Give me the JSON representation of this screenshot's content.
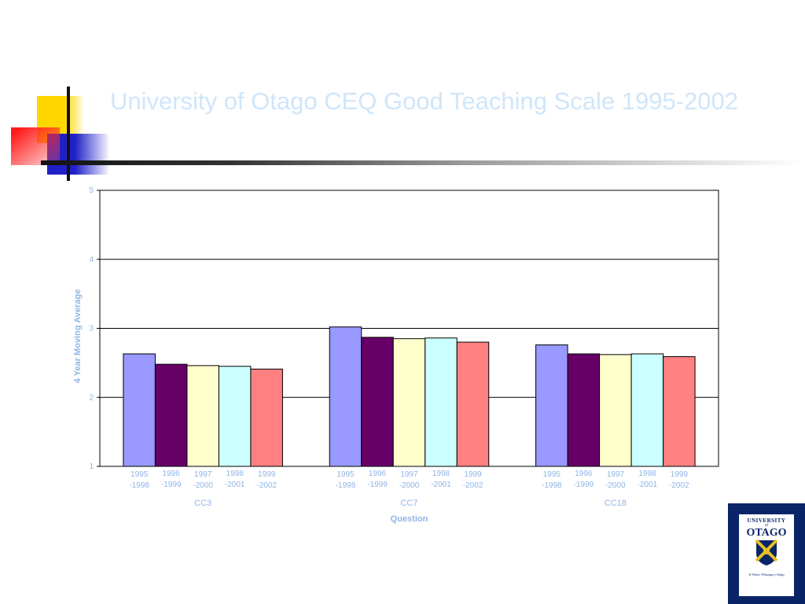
{
  "slide": {
    "title": "University of Otago CEQ Good Teaching Scale 1995-2002",
    "logo": {
      "top_text": "UNIVERSITY",
      "of_text": "of",
      "name": "OTAGO",
      "motto": "Te Whare Wānanga o Otāgo",
      "icon": "university-crest-icon"
    }
  },
  "chart_data": {
    "type": "bar",
    "title": "",
    "xlabel": "Question",
    "ylabel": "4 Year Moving Average",
    "ylim": [
      1,
      5
    ],
    "yticks": [
      1,
      2,
      3,
      4,
      5
    ],
    "grid": true,
    "groups": [
      "CC3",
      "CC7",
      "CC18"
    ],
    "bar_labels": [
      [
        "1995",
        "-1998"
      ],
      [
        "1996",
        "-1999"
      ],
      [
        "1997",
        "-2000"
      ],
      [
        "1998",
        "-2001"
      ],
      [
        "1999",
        "-2002"
      ]
    ],
    "colors": [
      "#9999ff",
      "#660066",
      "#ffffcc",
      "#ccffff",
      "#ff8080"
    ],
    "values": [
      [
        2.63,
        2.48,
        2.46,
        2.45,
        2.41
      ],
      [
        3.02,
        2.87,
        2.85,
        2.86,
        2.8
      ],
      [
        2.76,
        2.63,
        2.62,
        2.63,
        2.59
      ]
    ]
  }
}
